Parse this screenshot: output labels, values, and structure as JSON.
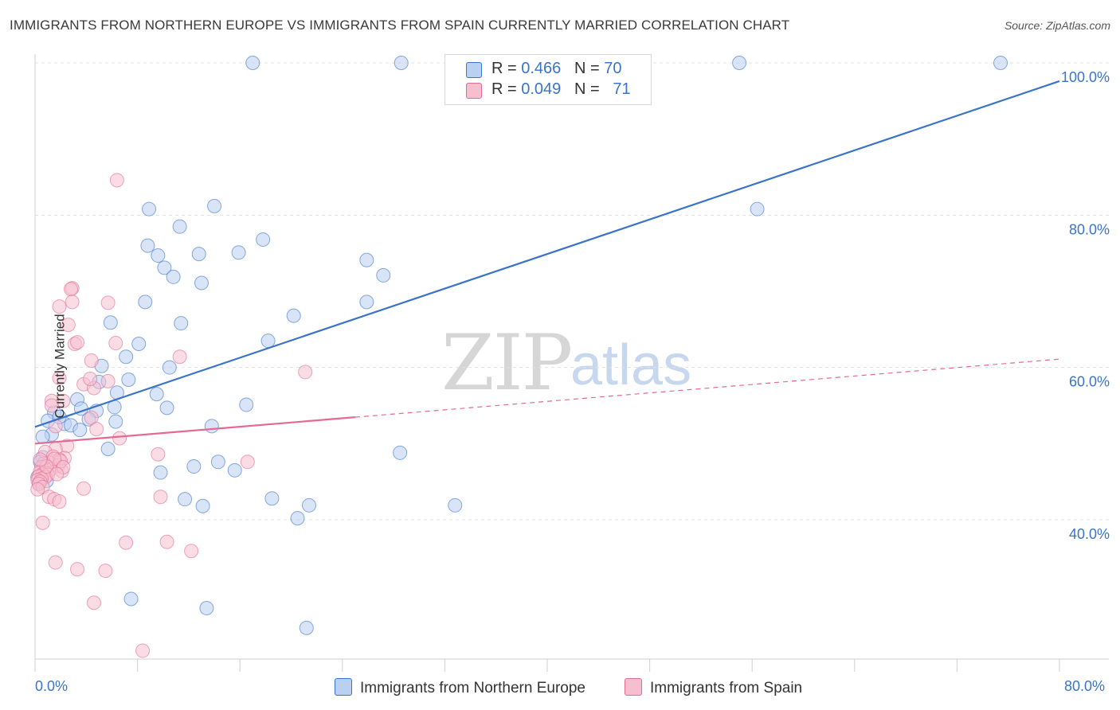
{
  "title": "IMMIGRANTS FROM NORTHERN EUROPE VS IMMIGRANTS FROM SPAIN CURRENTLY MARRIED CORRELATION CHART",
  "source": "Source: ZipAtlas.com",
  "watermark": {
    "zip": "ZIP",
    "atlas": "atlas"
  },
  "legend_top": {
    "blue": {
      "r_label": "R = ",
      "r_value": "0.466",
      "n_label": "N = ",
      "n_value": "70"
    },
    "pink": {
      "r_label": "R = ",
      "r_value": "0.049",
      "n_label": "N = ",
      "n_value": "71"
    }
  },
  "colors": {
    "blue": "#3a74c9",
    "blue_fill": "#b9d0f0",
    "pink": "#e26a95",
    "pink_fill": "#f6bfd0",
    "grid": "#e2e2e2",
    "axis_text": "#3a74c9"
  },
  "chart_data": {
    "type": "scatter",
    "title": "IMMIGRANTS FROM NORTHERN EUROPE VS IMMIGRANTS FROM SPAIN CURRENTLY MARRIED CORRELATION CHART",
    "xlabel": "",
    "ylabel": "Currently Married",
    "xlim": [
      0,
      80
    ],
    "ylim": [
      20,
      102
    ],
    "x_tick_labels": [
      "0.0%",
      "80.0%"
    ],
    "y_ticks": [
      40,
      60,
      80,
      100
    ],
    "y_tick_labels": [
      "40.0%",
      "60.0%",
      "80.0%",
      "100.0%"
    ],
    "legend": [
      "Immigrants from Northern Europe",
      "Immigrants from Spain"
    ],
    "series": [
      {
        "name": "Immigrants from Northern Europe",
        "color": "#3a74c9",
        "trend": {
          "x0": 0,
          "y0": 52.2,
          "x1": 80,
          "y1": 97.6,
          "x_solid_end": 80
        },
        "points": [
          [
            17.0,
            100
          ],
          [
            28.6,
            100
          ],
          [
            55.0,
            100
          ],
          [
            75.4,
            100
          ],
          [
            56.4,
            80.8
          ],
          [
            8.9,
            80.8
          ],
          [
            14.0,
            81.2
          ],
          [
            11.3,
            78.5
          ],
          [
            8.8,
            76.0
          ],
          [
            17.8,
            76.8
          ],
          [
            15.9,
            75.1
          ],
          [
            12.8,
            74.9
          ],
          [
            9.6,
            74.7
          ],
          [
            10.1,
            73.1
          ],
          [
            25.9,
            74.1
          ],
          [
            27.2,
            72.1
          ],
          [
            10.8,
            71.9
          ],
          [
            13.0,
            71.1
          ],
          [
            8.6,
            68.6
          ],
          [
            25.9,
            68.6
          ],
          [
            20.2,
            66.8
          ],
          [
            11.4,
            65.8
          ],
          [
            5.9,
            65.9
          ],
          [
            18.2,
            63.5
          ],
          [
            8.1,
            63.1
          ],
          [
            7.1,
            61.4
          ],
          [
            10.5,
            60.0
          ],
          [
            5.2,
            60.2
          ],
          [
            7.3,
            58.4
          ],
          [
            5.0,
            58.1
          ],
          [
            6.4,
            56.7
          ],
          [
            9.5,
            56.5
          ],
          [
            3.3,
            55.8
          ],
          [
            16.5,
            55.1
          ],
          [
            10.3,
            54.7
          ],
          [
            6.2,
            54.8
          ],
          [
            3.6,
            54.6
          ],
          [
            4.8,
            54.3
          ],
          [
            1.5,
            54.1
          ],
          [
            1.0,
            53.0
          ],
          [
            2.3,
            52.6
          ],
          [
            2.8,
            52.4
          ],
          [
            6.3,
            52.9
          ],
          [
            13.8,
            52.3
          ],
          [
            3.5,
            51.8
          ],
          [
            1.3,
            51.2
          ],
          [
            0.6,
            50.9
          ],
          [
            5.7,
            49.3
          ],
          [
            28.5,
            48.8
          ],
          [
            0.6,
            48.2
          ],
          [
            0.4,
            47.6
          ],
          [
            0.7,
            47.0
          ],
          [
            14.3,
            47.6
          ],
          [
            12.4,
            47.0
          ],
          [
            15.6,
            46.5
          ],
          [
            9.8,
            46.2
          ],
          [
            0.2,
            45.6
          ],
          [
            0.9,
            45.1
          ],
          [
            0.3,
            44.7
          ],
          [
            11.7,
            42.7
          ],
          [
            18.5,
            42.8
          ],
          [
            21.4,
            41.9
          ],
          [
            13.1,
            41.8
          ],
          [
            32.8,
            41.9
          ],
          [
            20.5,
            40.2
          ],
          [
            7.5,
            29.6
          ],
          [
            13.4,
            28.4
          ],
          [
            21.2,
            25.8
          ],
          [
            1.9,
            53.5
          ],
          [
            4.2,
            53.2
          ]
        ]
      },
      {
        "name": "Immigrants from Spain",
        "color": "#e26a95",
        "trend": {
          "x0": 0,
          "y0": 50.0,
          "x1": 80,
          "y1": 61.1,
          "x_solid_end": 25.0
        },
        "points": [
          [
            6.4,
            84.6
          ],
          [
            2.9,
            70.4
          ],
          [
            2.8,
            70.3
          ],
          [
            2.9,
            68.6
          ],
          [
            5.7,
            68.5
          ],
          [
            1.9,
            68.0
          ],
          [
            2.6,
            65.6
          ],
          [
            3.1,
            63.1
          ],
          [
            6.3,
            63.2
          ],
          [
            3.3,
            63.3
          ],
          [
            11.3,
            61.4
          ],
          [
            4.4,
            60.9
          ],
          [
            21.1,
            59.4
          ],
          [
            1.9,
            58.6
          ],
          [
            3.8,
            57.8
          ],
          [
            4.6,
            57.3
          ],
          [
            5.7,
            58.2
          ],
          [
            4.3,
            58.5
          ],
          [
            2.2,
            55.6
          ],
          [
            1.3,
            55.6
          ],
          [
            1.3,
            55.0
          ],
          [
            4.4,
            53.4
          ],
          [
            1.6,
            52.3
          ],
          [
            4.8,
            51.9
          ],
          [
            6.6,
            50.7
          ],
          [
            2.5,
            49.7
          ],
          [
            1.6,
            49.3
          ],
          [
            0.8,
            48.9
          ],
          [
            9.6,
            48.6
          ],
          [
            1.4,
            48.3
          ],
          [
            2.3,
            48.1
          ],
          [
            1.9,
            47.9
          ],
          [
            16.6,
            47.6
          ],
          [
            1.1,
            47.5
          ],
          [
            0.7,
            47.4
          ],
          [
            1.8,
            47.1
          ],
          [
            0.5,
            46.9
          ],
          [
            1.2,
            46.6
          ],
          [
            2.1,
            46.4
          ],
          [
            0.4,
            46.3
          ],
          [
            0.9,
            46.1
          ],
          [
            0.6,
            46.0
          ],
          [
            1.0,
            45.9
          ],
          [
            0.3,
            45.7
          ],
          [
            0.8,
            45.6
          ],
          [
            0.5,
            45.4
          ],
          [
            0.2,
            45.2
          ],
          [
            0.4,
            45.0
          ],
          [
            0.3,
            44.7
          ],
          [
            0.6,
            44.3
          ],
          [
            0.2,
            44.0
          ],
          [
            3.8,
            44.1
          ],
          [
            1.1,
            43.0
          ],
          [
            9.8,
            43.0
          ],
          [
            1.5,
            42.7
          ],
          [
            1.9,
            42.4
          ],
          [
            0.6,
            39.6
          ],
          [
            7.1,
            37.0
          ],
          [
            10.3,
            37.1
          ],
          [
            12.2,
            35.9
          ],
          [
            1.6,
            34.4
          ],
          [
            3.3,
            33.5
          ],
          [
            5.5,
            33.3
          ],
          [
            4.6,
            29.1
          ],
          [
            8.4,
            22.8
          ],
          [
            2.0,
            47.7
          ],
          [
            1.5,
            48.0
          ],
          [
            0.9,
            47.0
          ],
          [
            2.2,
            46.9
          ],
          [
            1.7,
            46.0
          ],
          [
            0.4,
            47.9
          ]
        ]
      }
    ]
  }
}
